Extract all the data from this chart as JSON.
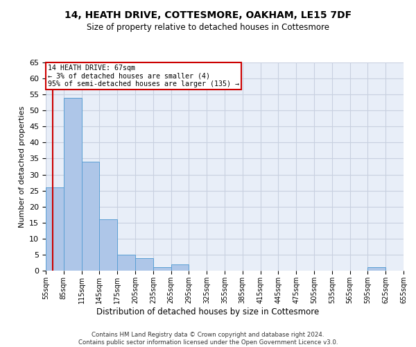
{
  "title1": "14, HEATH DRIVE, COTTESMORE, OAKHAM, LE15 7DF",
  "title2": "Size of property relative to detached houses in Cottesmore",
  "xlabel": "Distribution of detached houses by size in Cottesmore",
  "ylabel": "Number of detached properties",
  "footnote1": "Contains HM Land Registry data © Crown copyright and database right 2024.",
  "footnote2": "Contains public sector information licensed under the Open Government Licence v3.0.",
  "annotation_line1": "14 HEATH DRIVE: 67sqm",
  "annotation_line2": "← 3% of detached houses are smaller (4)",
  "annotation_line3": "95% of semi-detached houses are larger (135) →",
  "property_size": 67,
  "bin_edges": [
    55,
    85,
    115,
    145,
    175,
    205,
    235,
    265,
    295,
    325,
    355,
    385,
    415,
    445,
    475,
    505,
    535,
    565,
    595,
    625,
    655
  ],
  "bar_heights": [
    26,
    54,
    34,
    16,
    5,
    4,
    1,
    2,
    0,
    0,
    0,
    0,
    0,
    0,
    0,
    0,
    0,
    0,
    1,
    0
  ],
  "bar_color": "#aec6e8",
  "bar_edge_color": "#5a9fd4",
  "vline_color": "#cc0000",
  "annotation_box_color": "#cc0000",
  "background_color": "#e8eef8",
  "grid_color": "#c8d0e0",
  "ylim": [
    0,
    65
  ],
  "yticks": [
    0,
    5,
    10,
    15,
    20,
    25,
    30,
    35,
    40,
    45,
    50,
    55,
    60,
    65
  ]
}
